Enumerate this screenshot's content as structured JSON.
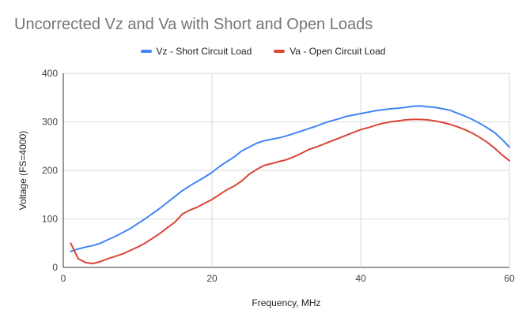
{
  "chart_data": {
    "type": "line",
    "title": "Uncorrected Vz and Va with Short and Open Loads",
    "xlabel": "Frequency, MHz",
    "ylabel": "Voltage (FS=4000)",
    "xlim": [
      0,
      60
    ],
    "ylim": [
      0,
      400
    ],
    "xticks": [
      0,
      20,
      40,
      60
    ],
    "yticks": [
      0,
      100,
      200,
      300,
      400
    ],
    "grid": true,
    "legend_position": "top",
    "series": [
      {
        "name": "Vz - Short Circuit Load",
        "color": "#4285f4",
        "x": [
          1,
          2,
          3,
          4,
          5,
          6,
          7,
          8,
          9,
          10,
          11,
          12,
          13,
          14,
          15,
          16,
          17,
          18,
          19,
          20,
          21,
          22,
          23,
          24,
          25,
          26,
          27,
          28,
          29,
          30,
          31,
          32,
          33,
          34,
          35,
          36,
          37,
          38,
          39,
          40,
          41,
          42,
          43,
          44,
          45,
          46,
          47,
          48,
          49,
          50,
          51,
          52,
          53,
          54,
          55,
          56,
          57,
          58,
          59,
          60
        ],
        "y": [
          33,
          38,
          42,
          45,
          50,
          57,
          64,
          72,
          80,
          90,
          100,
          111,
          122,
          134,
          146,
          158,
          168,
          177,
          186,
          196,
          208,
          218,
          228,
          240,
          248,
          256,
          261,
          264,
          267,
          271,
          276,
          281,
          286,
          291,
          297,
          302,
          306,
          311,
          314,
          317,
          320,
          323,
          325,
          327,
          328,
          330,
          332,
          333,
          331,
          330,
          327,
          324,
          318,
          312,
          305,
          297,
          288,
          278,
          264,
          248
        ]
      },
      {
        "name": "Va - Open Circuit Load",
        "color": "#db4437",
        "x": [
          1,
          2,
          3,
          4,
          5,
          6,
          7,
          8,
          9,
          10,
          11,
          12,
          13,
          14,
          15,
          16,
          17,
          18,
          19,
          20,
          21,
          22,
          23,
          24,
          25,
          26,
          27,
          28,
          29,
          30,
          31,
          32,
          33,
          34,
          35,
          36,
          37,
          38,
          39,
          40,
          41,
          42,
          43,
          44,
          45,
          46,
          47,
          48,
          49,
          50,
          51,
          52,
          53,
          54,
          55,
          56,
          57,
          58,
          59,
          60
        ],
        "y": [
          50,
          18,
          10,
          8,
          12,
          18,
          23,
          28,
          35,
          42,
          50,
          60,
          70,
          82,
          93,
          110,
          118,
          124,
          132,
          140,
          150,
          160,
          168,
          178,
          192,
          202,
          210,
          214,
          218,
          222,
          228,
          235,
          243,
          248,
          254,
          260,
          266,
          272,
          278,
          284,
          288,
          293,
          297,
          300,
          302,
          304,
          305,
          305,
          304,
          302,
          299,
          295,
          290,
          284,
          277,
          268,
          258,
          246,
          232,
          220
        ]
      }
    ]
  }
}
